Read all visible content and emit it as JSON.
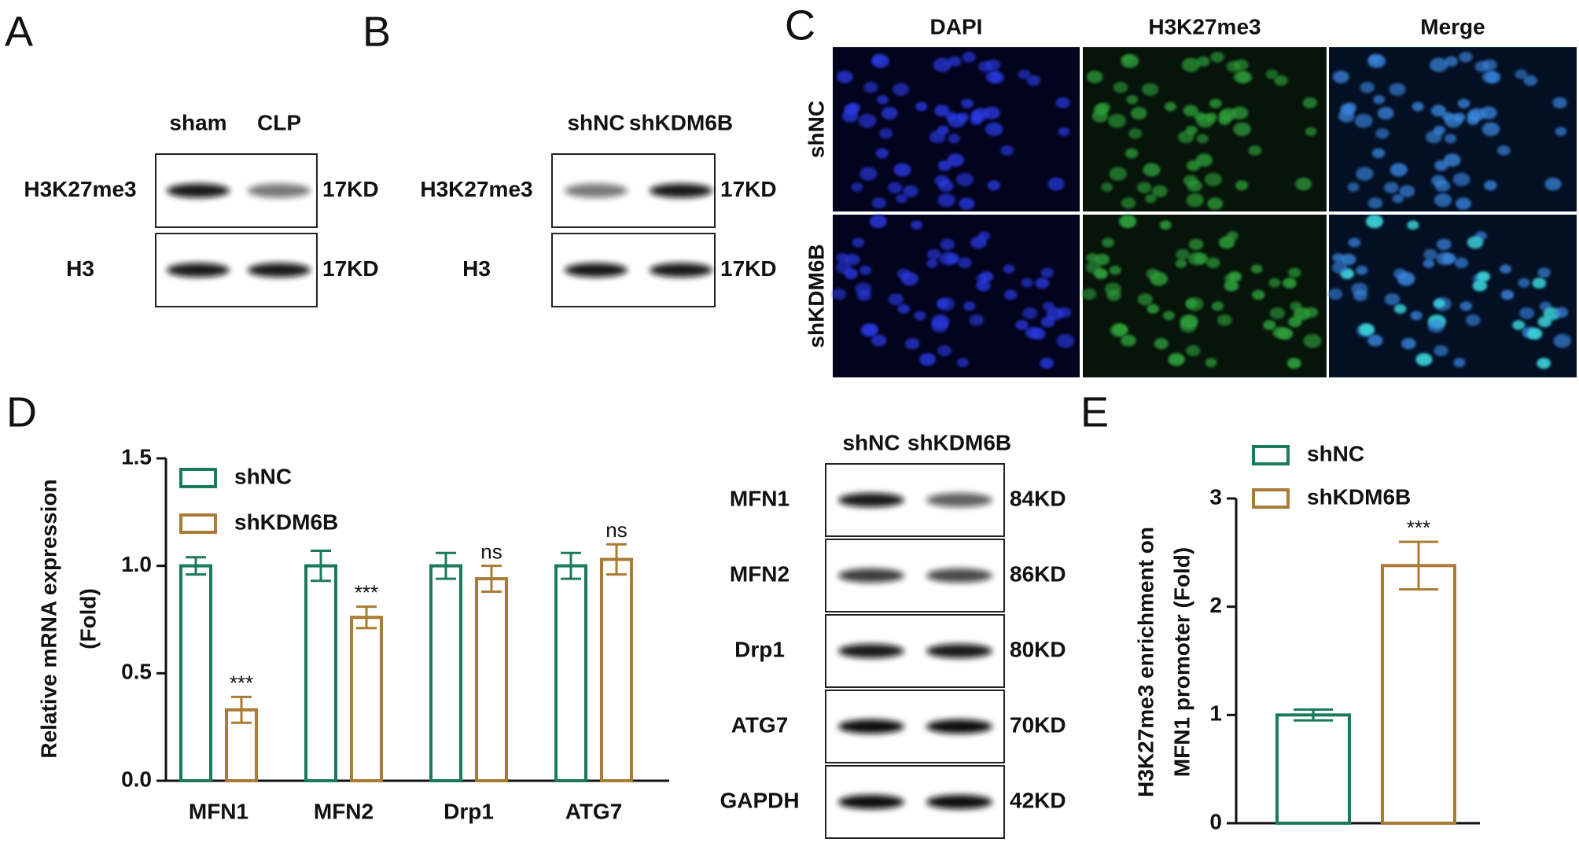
{
  "panel_labels": [
    "A",
    "B",
    "C",
    "D",
    "E"
  ],
  "blot_a": {
    "lanes": [
      "sham",
      "CLP"
    ],
    "rows": [
      {
        "label": "H3K27me3",
        "size": "17KD"
      },
      {
        "label": "H3",
        "size": "17KD"
      }
    ]
  },
  "blot_b": {
    "lanes": [
      "shNC",
      "shKDM6B"
    ],
    "rows": [
      {
        "label": "H3K27me3",
        "size": "17KD"
      },
      {
        "label": "H3",
        "size": "17KD"
      }
    ]
  },
  "microscopy_c": {
    "columns": [
      "DAPI",
      "H3K27me3",
      "Merge"
    ],
    "rows": [
      "shNC",
      "shKDM6B"
    ]
  },
  "blot_d": {
    "lanes": [
      "shNC",
      "shKDM6B"
    ],
    "rows": [
      {
        "label": "MFN1",
        "size": "84KD"
      },
      {
        "label": "MFN2",
        "size": "86KD"
      },
      {
        "label": "Drp1",
        "size": "80KD"
      },
      {
        "label": "ATG7",
        "size": "70KD"
      },
      {
        "label": "GAPDH",
        "size": "42KD"
      }
    ]
  },
  "chart_data": [
    {
      "type": "bar",
      "y_label": [
        "Relative mRNA expression",
        "(Fold)"
      ],
      "categories": [
        "MFN1",
        "MFN2",
        "Drp1",
        "ATG7"
      ],
      "series": [
        {
          "name": "shNC",
          "color": "#1b7a5c",
          "values": [
            1.0,
            1.0,
            1.0,
            1.0
          ],
          "errors": [
            0.04,
            0.07,
            0.06,
            0.06
          ]
        },
        {
          "name": "shKDM6B",
          "color": "#a97b35",
          "values": [
            0.33,
            0.76,
            0.94,
            1.03
          ],
          "errors": [
            0.06,
            0.05,
            0.06,
            0.07
          ],
          "annotations": [
            "***",
            "***",
            "ns",
            "ns"
          ]
        }
      ],
      "ylim": [
        0,
        1.5
      ],
      "yticks": [
        {
          "value": 0,
          "label": "0.0"
        },
        0.5,
        {
          "value": 1,
          "label": "1.0"
        },
        1.5
      ],
      "legend": "top-left"
    },
    {
      "type": "bar",
      "y_label": [
        "H3K27me3 enrichment on",
        "MFN1 promoter (Fold)"
      ],
      "categories": [
        null
      ],
      "series": [
        {
          "name": "shNC",
          "color": "#1b7a5c",
          "values": [
            1.0
          ],
          "errors": [
            0.05
          ]
        },
        {
          "name": "shKDM6B",
          "color": "#a97b35",
          "values": [
            2.38
          ],
          "errors": [
            0.22
          ],
          "annotations": [
            "***"
          ]
        }
      ],
      "ylim": [
        0,
        3
      ],
      "yticks": [
        0,
        1,
        2,
        3
      ],
      "legend": "top-left"
    }
  ]
}
